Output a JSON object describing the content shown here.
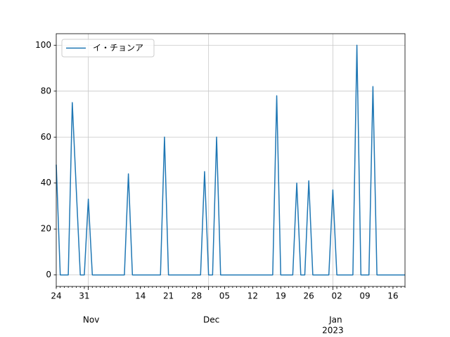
{
  "chart_data": {
    "type": "line",
    "x": [
      "2022-10-24",
      "2022-10-25",
      "2022-10-26",
      "2022-10-27",
      "2022-10-28",
      "2022-10-29",
      "2022-10-30",
      "2022-10-31",
      "2022-11-01",
      "2022-11-02",
      "2022-11-03",
      "2022-11-04",
      "2022-11-05",
      "2022-11-06",
      "2022-11-07",
      "2022-11-08",
      "2022-11-09",
      "2022-11-10",
      "2022-11-11",
      "2022-11-12",
      "2022-11-13",
      "2022-11-14",
      "2022-11-15",
      "2022-11-16",
      "2022-11-17",
      "2022-11-18",
      "2022-11-19",
      "2022-11-20",
      "2022-11-21",
      "2022-11-22",
      "2022-11-23",
      "2022-11-24",
      "2022-11-25",
      "2022-11-26",
      "2022-11-27",
      "2022-11-28",
      "2022-11-29",
      "2022-11-30",
      "2022-12-01",
      "2022-12-02",
      "2022-12-03",
      "2022-12-04",
      "2022-12-05",
      "2022-12-06",
      "2022-12-07",
      "2022-12-08",
      "2022-12-09",
      "2022-12-10",
      "2022-12-11",
      "2022-12-12",
      "2022-12-13",
      "2022-12-14",
      "2022-12-15",
      "2022-12-16",
      "2022-12-17",
      "2022-12-18",
      "2022-12-19",
      "2022-12-20",
      "2022-12-21",
      "2022-12-22",
      "2022-12-23",
      "2022-12-24",
      "2022-12-25",
      "2022-12-26",
      "2022-12-27",
      "2022-12-28",
      "2022-12-29",
      "2022-12-30",
      "2022-12-31",
      "2023-01-01",
      "2023-01-02",
      "2023-01-03",
      "2023-01-04",
      "2023-01-05",
      "2023-01-06",
      "2023-01-07",
      "2023-01-08",
      "2023-01-09",
      "2023-01-10",
      "2023-01-11",
      "2023-01-12",
      "2023-01-13",
      "2023-01-14",
      "2023-01-15",
      "2023-01-16",
      "2023-01-17",
      "2023-01-18",
      "2023-01-19"
    ],
    "series": [
      {
        "name": "イ・チョンア",
        "color": "#1f77b4",
        "values": [
          48,
          0,
          0,
          0,
          75,
          37,
          0,
          0,
          33,
          0,
          0,
          0,
          0,
          0,
          0,
          0,
          0,
          0,
          44,
          0,
          0,
          0,
          0,
          0,
          0,
          0,
          0,
          60,
          0,
          0,
          0,
          0,
          0,
          0,
          0,
          0,
          0,
          45,
          0,
          0,
          60,
          0,
          0,
          0,
          0,
          0,
          0,
          0,
          0,
          0,
          0,
          0,
          0,
          0,
          0,
          78,
          0,
          0,
          0,
          0,
          40,
          0,
          0,
          41,
          0,
          0,
          0,
          0,
          0,
          37,
          0,
          0,
          0,
          0,
          0,
          100,
          0,
          0,
          0,
          82,
          0,
          0,
          0,
          0,
          0,
          0,
          0,
          0
        ]
      }
    ],
    "xlim": [
      "2022-10-24",
      "2023-01-19"
    ],
    "xticks": [
      {
        "value": "2022-10-24",
        "label": "24"
      },
      {
        "value": "2022-10-31",
        "label": "31"
      },
      {
        "value": "2022-11-14",
        "label": "14"
      },
      {
        "value": "2022-11-21",
        "label": "21"
      },
      {
        "value": "2022-11-28",
        "label": "28"
      },
      {
        "value": "2022-12-05",
        "label": "05"
      },
      {
        "value": "2022-12-12",
        "label": "12"
      },
      {
        "value": "2022-12-19",
        "label": "19"
      },
      {
        "value": "2022-12-26",
        "label": "26"
      },
      {
        "value": "2023-01-02",
        "label": "02"
      },
      {
        "value": "2023-01-09",
        "label": "09"
      },
      {
        "value": "2023-01-16",
        "label": "16"
      }
    ],
    "month_ticks": [
      {
        "value": "2022-11-01",
        "label": "Nov"
      },
      {
        "value": "2022-12-01",
        "label": "Dec"
      },
      {
        "value": "2023-01-01",
        "label": "Jan",
        "year": "2023"
      }
    ],
    "ylim": [
      -5,
      105
    ],
    "yticks": [
      0,
      20,
      40,
      60,
      80,
      100
    ],
    "grid": true,
    "legend": "upper-left"
  }
}
